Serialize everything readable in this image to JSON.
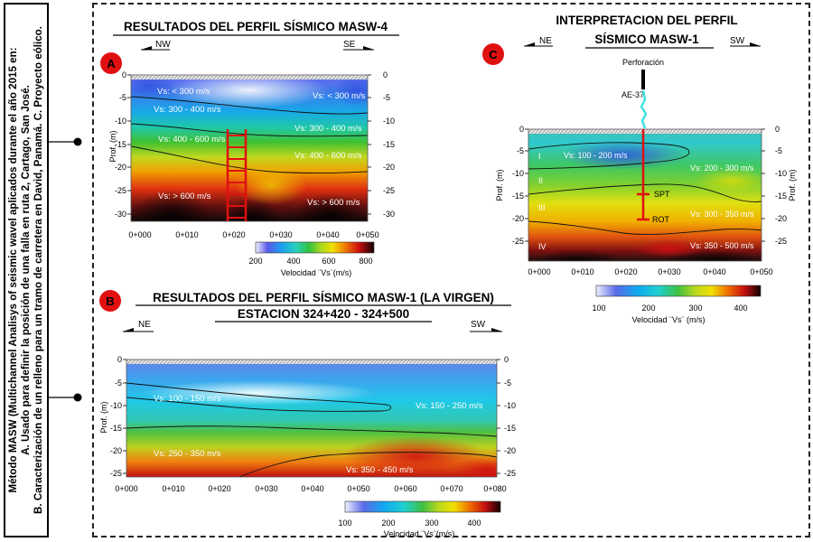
{
  "sidebar": {
    "lines": [
      "Método MASW (Multichannel Analisys of seismic wavel aplicados durante el año 2015 en:",
      "A. Usado para definir la posición de una falla en ruta 2, Cartago, San José.",
      "B. Caracterización de un relleno para un tramo de carretera en David, Panamá. C. Proyecto eólico."
    ]
  },
  "panelA": {
    "badge": "A",
    "title": "RESULTADOS DEL PERFIL SÍSMICO MASW-4",
    "dir_left": "NW",
    "dir_right": "SE",
    "ylabel": "Prof. (m)",
    "yticks": [
      "0",
      "-5",
      "-10",
      "-15",
      "-20",
      "-25",
      "-30"
    ],
    "xticks": [
      "0+000",
      "0+010",
      "0+020",
      "0+030",
      "0+040",
      "0+050"
    ],
    "labels": [
      "Vs: < 300 m/s",
      "Vs: < 300 m/s",
      "Vs: 300 - 400 m/s",
      "Vs: 300 - 400 m/s",
      "Vs: 400 - 600 m/s",
      "Vs: 400 - 600 m/s",
      "Vs: > 600 m/s",
      "Vs: > 600 m/s"
    ],
    "colorbar_ticks": [
      "200",
      "400",
      "600",
      "800"
    ],
    "colorbar_label": "Velocidad ¨Vs¨(m/s)"
  },
  "panelB": {
    "badge": "B",
    "title1": "RESULTADOS DEL PERFIL SÍSMICO MASW-1 (LA VIRGEN)",
    "title2": "ESTACION 324+420 - 324+500",
    "dir_left": "NE",
    "dir_right": "SW",
    "ylabel": "Prof. (m)",
    "yticks": [
      "0",
      "-5",
      "-10",
      "-15",
      "-20",
      "-25"
    ],
    "xticks": [
      "0+000",
      "0+010",
      "0+020",
      "0+030",
      "0+040",
      "0+050",
      "0+060",
      "0+070",
      "0+080"
    ],
    "labels": [
      "Vs: 100 - 150 m/s",
      "Vs: 150 - 250 m/s",
      "Vs: 250 - 350 m/s",
      "Vs: 350 - 450 m/s"
    ],
    "colorbar_ticks": [
      "100",
      "200",
      "300",
      "400"
    ],
    "colorbar_label": "Velocidad ¨Vs¨(m/s)"
  },
  "panelC": {
    "badge": "C",
    "title1": "INTERPRETACION DEL PERFIL",
    "title2": "SÍSMICO MASW-1",
    "dir_left": "NE",
    "dir_right": "SW",
    "ylabel": "Prof. (m)",
    "yticks": [
      "0",
      "-5",
      "-10",
      "-15",
      "-20",
      "-25"
    ],
    "xticks": [
      "0+000",
      "0+010",
      "0+020",
      "0+030",
      "0+040",
      "0+050"
    ],
    "borehole_title": "Perforación",
    "borehole_id": "AE-37",
    "spt": "SPT",
    "rot": "ROT",
    "layers": [
      "I",
      "II",
      "III",
      "IV"
    ],
    "labels": [
      "Vs: 100 - 200 m/s",
      "Vs: 200 - 300 m/s",
      "Vs: 300 - 350 m/s",
      "Vs: 350 - 500 m/s"
    ],
    "colorbar_ticks": [
      "100",
      "200",
      "300",
      "400"
    ],
    "colorbar_label": "Velocidad ¨Vs¨ (m/s)"
  }
}
